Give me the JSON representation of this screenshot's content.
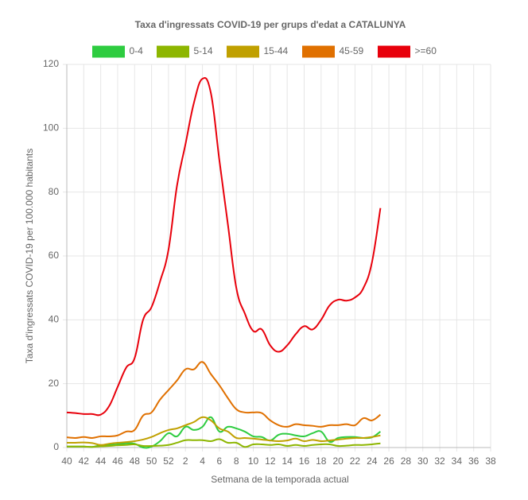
{
  "chart_data": {
    "type": "line",
    "title": "Taxa d'ingressats COVID-19 per grups d'edat a CATALUNYA",
    "x_label": "Setmana de la temporada actual",
    "y_label": "Taxa d'ingressats COVID-19 per 100.000 habitants",
    "categories": [
      "40",
      null,
      "42",
      null,
      "44",
      null,
      "46",
      null,
      "48",
      null,
      "50",
      null,
      "52",
      null,
      "2",
      null,
      "4",
      null,
      "6",
      null,
      "8",
      null,
      "10",
      null,
      "12",
      null,
      "14",
      null,
      "16",
      null,
      "18",
      null,
      "20",
      null,
      "22",
      null,
      "24",
      null,
      "26",
      null,
      "28",
      null,
      "30",
      null,
      "32",
      null,
      "34",
      null,
      "36",
      null,
      "38"
    ],
    "ylim": [
      0,
      120
    ],
    "yticks": [
      0,
      20,
      40,
      60,
      80,
      100,
      120
    ],
    "grid": true,
    "series": [
      {
        "name": "0-4",
        "color": "#2ecc40",
        "values": [
          0.3,
          0.3,
          0.3,
          0.2,
          0.7,
          0.8,
          1,
          1.3,
          1.2,
          0,
          0.3,
          2,
          4.5,
          3.5,
          6.5,
          5.5,
          6.5,
          9.5,
          5,
          6.5,
          6,
          5,
          3.5,
          3.3,
          2.2,
          4,
          4.3,
          3.8,
          3.5,
          4.5,
          5,
          1.8,
          3,
          3.3,
          3.3,
          3,
          3.2,
          5,
          null,
          null,
          null,
          null,
          null,
          null,
          null,
          null,
          null,
          null,
          null,
          null,
          null
        ]
      },
      {
        "name": "5-14",
        "color": "#8db600",
        "values": [
          0.3,
          0.3,
          0.3,
          0.2,
          0.4,
          0.5,
          0.7,
          0.8,
          1,
          0.5,
          0.5,
          0.6,
          0.8,
          1.5,
          2.3,
          2.3,
          2.3,
          2,
          2.6,
          1.5,
          1.5,
          0.2,
          1,
          1,
          0.8,
          1,
          0.5,
          0.8,
          0.5,
          0.8,
          1,
          1,
          0.5,
          0.6,
          0.8,
          0.8,
          1,
          1.3,
          null,
          null,
          null,
          null,
          null,
          null,
          null,
          null,
          null,
          null,
          null,
          null,
          null
        ]
      },
      {
        "name": "15-44",
        "color": "#c0a000",
        "values": [
          1.5,
          1.5,
          1.6,
          1.4,
          0.8,
          1.2,
          1.5,
          1.7,
          2,
          2.5,
          3.3,
          4.5,
          5.5,
          6,
          7,
          8,
          9.5,
          8.5,
          6,
          5,
          3,
          3,
          2.8,
          2.5,
          2.2,
          2,
          2.2,
          2.8,
          2,
          2.4,
          2,
          2.2,
          2.5,
          2.8,
          3,
          3,
          3.3,
          3.8,
          null,
          null,
          null,
          null,
          null,
          null,
          null,
          null,
          null,
          null,
          null,
          null,
          null
        ]
      },
      {
        "name": "45-59",
        "color": "#e07000",
        "values": [
          3.2,
          3,
          3.3,
          3,
          3.5,
          3.5,
          3.8,
          5,
          5.5,
          10,
          11,
          15,
          18,
          21,
          24.5,
          24.5,
          26.8,
          23,
          19.5,
          15.5,
          12,
          11,
          11,
          10.8,
          8.5,
          7,
          6.5,
          7.3,
          7,
          6.8,
          6.5,
          7,
          7,
          7.3,
          7,
          9.2,
          8.5,
          10.3,
          null,
          null,
          null,
          null,
          null,
          null,
          null,
          null,
          null,
          null,
          null,
          null,
          null
        ]
      },
      {
        "name": ">=60",
        "color": "#e8000b",
        "values": [
          11,
          10.8,
          10.5,
          10.5,
          10.3,
          13,
          19,
          25,
          28,
          40,
          44,
          52,
          62,
          82,
          95,
          108,
          115.5,
          111,
          90,
          70,
          50,
          42,
          36.5,
          37,
          32,
          30,
          32,
          35.5,
          38,
          37,
          40,
          44.5,
          46.3,
          46,
          47,
          50,
          58,
          75,
          null,
          null,
          null,
          null,
          null,
          null,
          null,
          null,
          null,
          null,
          null,
          null,
          null
        ]
      }
    ]
  }
}
